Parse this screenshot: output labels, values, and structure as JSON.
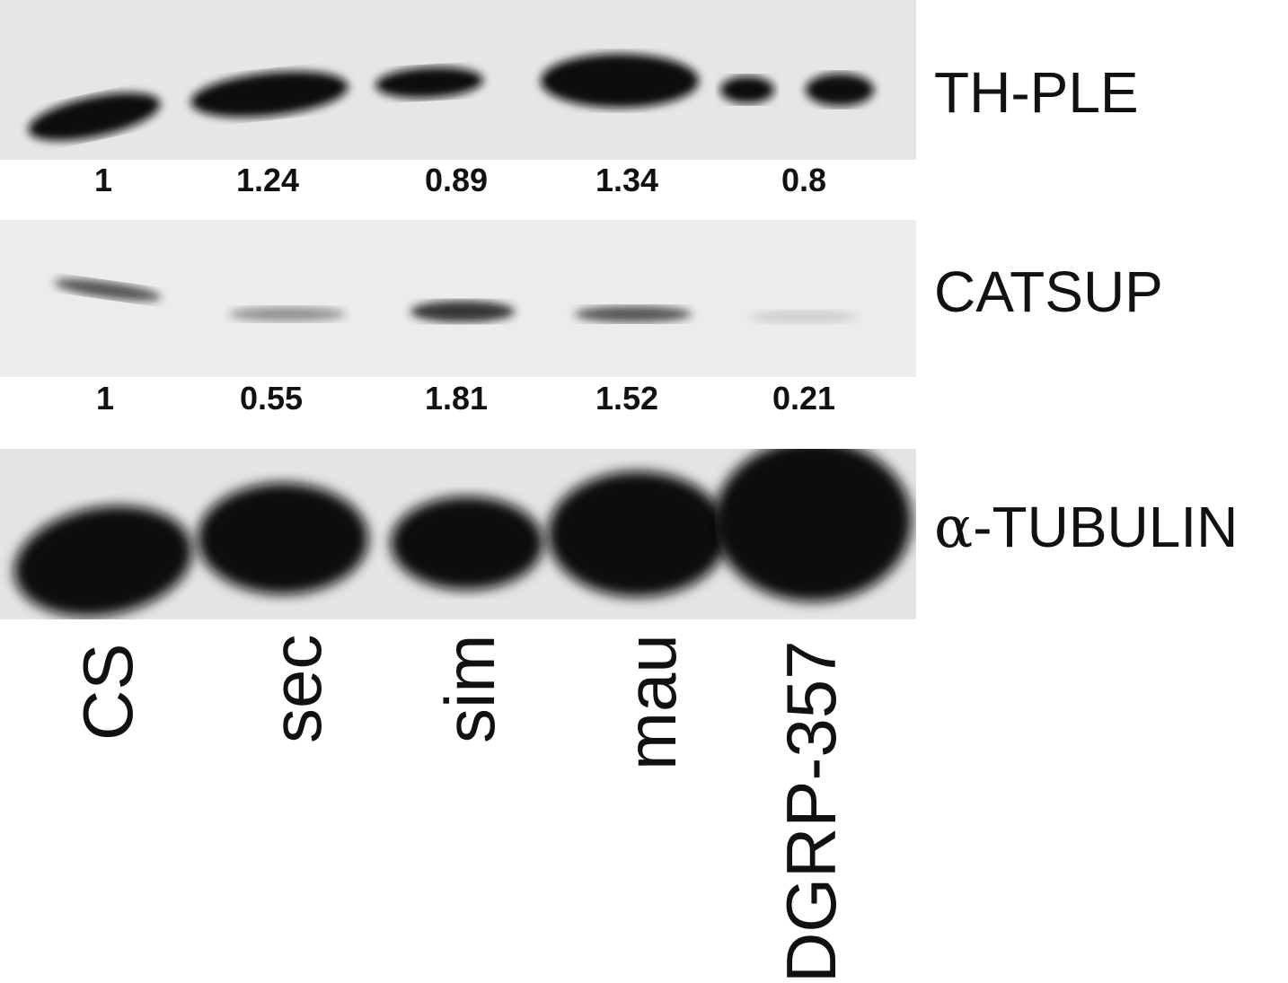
{
  "lanes": [
    "CS",
    "sec",
    "sim",
    "mau",
    "DGRP-357"
  ],
  "blots": [
    {
      "label": "TH-PLE",
      "quantification": [
        "1",
        "1.24",
        "0.89",
        "1.34",
        "0.8"
      ]
    },
    {
      "label": "CATSUP",
      "quantification": [
        "1",
        "0.55",
        "1.81",
        "1.52",
        "0.21"
      ]
    },
    {
      "label": "-TUBULIN",
      "prefix_symbol": "α"
    }
  ]
}
